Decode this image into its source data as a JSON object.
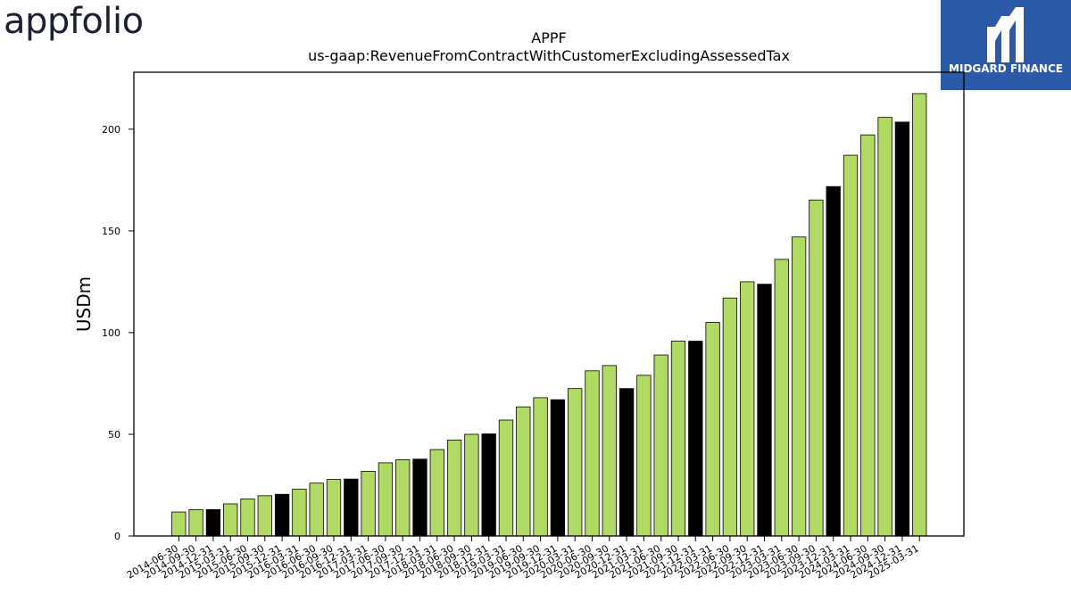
{
  "logos": {
    "left": "appfolio",
    "right": "MIDGARD FINANCE"
  },
  "colors": {
    "bar_default": "#b0da64",
    "bar_highlight": "#000000",
    "midgard_bg": "#2c5aa8"
  },
  "chart_data": {
    "type": "bar",
    "title": "APPF",
    "subtitle": "us-gaap:RevenueFromContractWithCustomerExcludingAssessedTax",
    "xlabel": "",
    "ylabel": "USDm",
    "ylim": [
      0,
      228
    ],
    "yticks": [
      0,
      50,
      100,
      150,
      200
    ],
    "grid": false,
    "categories": [
      "2014-06-30",
      "2014-09-30",
      "2014-12-31",
      "2015-03-31",
      "2015-06-30",
      "2015-09-30",
      "2015-12-31",
      "2016-03-31",
      "2016-06-30",
      "2016-09-30",
      "2016-12-31",
      "2017-03-31",
      "2017-06-30",
      "2017-09-30",
      "2017-12-31",
      "2018-03-31",
      "2018-06-30",
      "2018-09-30",
      "2018-12-31",
      "2019-03-31",
      "2019-06-30",
      "2019-09-30",
      "2019-12-31",
      "2020-03-31",
      "2020-06-30",
      "2020-09-30",
      "2020-12-31",
      "2021-03-31",
      "2021-06-30",
      "2021-09-30",
      "2021-12-31",
      "2022-03-31",
      "2022-06-30",
      "2022-09-30",
      "2022-12-31",
      "2023-03-31",
      "2023-06-30",
      "2023-09-30",
      "2023-12-31",
      "2024-03-31",
      "2024-06-30",
      "2024-09-30",
      "2024-12-31",
      "2025-03-31"
    ],
    "values": [
      11.8,
      13.0,
      13.0,
      15.8,
      18.2,
      19.8,
      20.5,
      23.0,
      26.0,
      27.8,
      28.0,
      31.8,
      36.0,
      37.5,
      37.8,
      42.5,
      47.2,
      50.0,
      50.2,
      57.0,
      63.5,
      68.0,
      67.0,
      72.5,
      81.2,
      83.8,
      72.5,
      79.0,
      89.0,
      95.8,
      95.8,
      105.0,
      117.0,
      125.0,
      123.8,
      136.0,
      147.0,
      165.2,
      171.8,
      187.2,
      197.2,
      205.8,
      203.5,
      217.5
    ],
    "highlight_categories": [
      "2014-12-31",
      "2015-12-31",
      "2016-12-31",
      "2017-12-31",
      "2018-12-31",
      "2019-12-31",
      "2020-12-31",
      "2021-12-31",
      "2022-12-31",
      "2023-12-31",
      "2024-12-31"
    ]
  }
}
